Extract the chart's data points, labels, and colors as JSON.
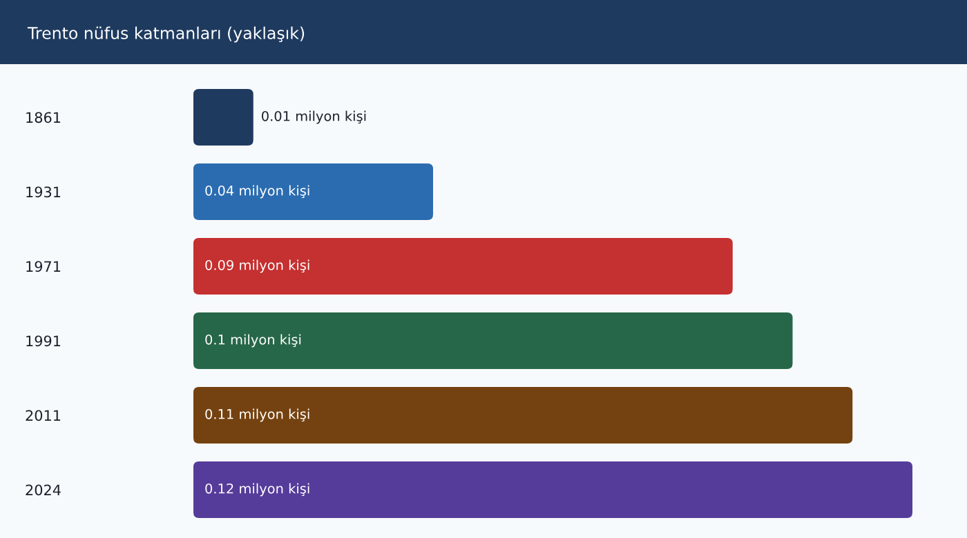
{
  "chart_data": {
    "type": "bar",
    "orientation": "horizontal",
    "title": "Trento nüfus katmanları (yaklaşık)",
    "categories": [
      "1861",
      "1931",
      "1971",
      "1991",
      "2011",
      "2024"
    ],
    "values": [
      0.01,
      0.04,
      0.09,
      0.1,
      0.11,
      0.12
    ],
    "colors": [
      "#1e3a5f",
      "#2b6cb0",
      "#c53030",
      "#276749",
      "#744210",
      "#553c9a"
    ],
    "value_labels": [
      "0.01 milyon kişi",
      "0.04 milyon kişi",
      "0.09 milyon kişi",
      "0.1 milyon kişi",
      "0.11 milyon kişi",
      "0.12 milyon kişi"
    ],
    "tick_labels": "y"
  }
}
